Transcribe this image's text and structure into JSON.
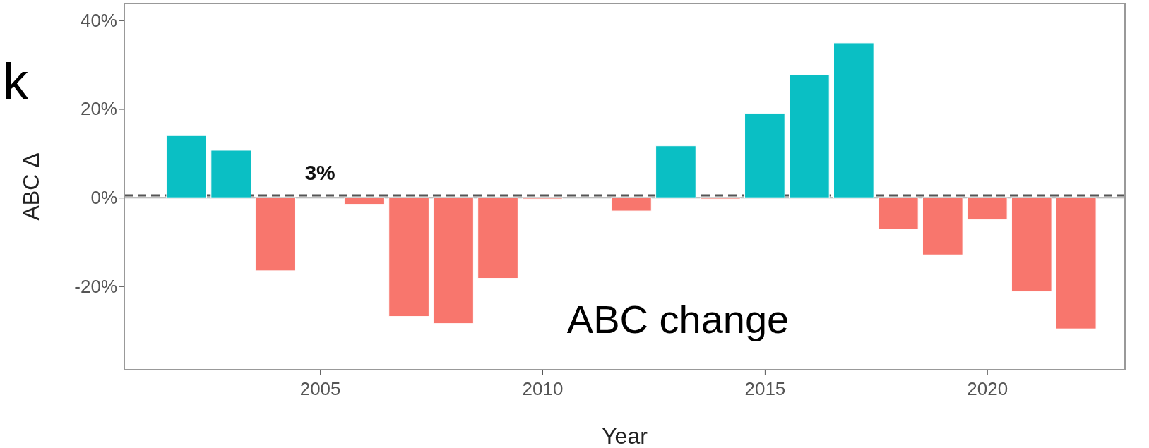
{
  "chart_data": {
    "type": "bar",
    "xlabel": "Year",
    "ylabel": "ABC Δ",
    "x": [
      2002,
      2003,
      2004,
      2006,
      2007,
      2008,
      2009,
      2010,
      2012,
      2013,
      2014,
      2015,
      2016,
      2017,
      2018,
      2019,
      2020,
      2021,
      2022
    ],
    "values": [
      14,
      10.7,
      -16.5,
      -1.5,
      -26.8,
      -28.4,
      -18.2,
      -0.3,
      -3,
      11.7,
      -0.3,
      19,
      27.8,
      34.9,
      -7.1,
      -12.9,
      -5,
      -21.2,
      -29.6
    ],
    "colors": [
      "#0abfc4",
      "#0abfc4",
      "#f8766d",
      "#f8766d",
      "#f8766d",
      "#f8766d",
      "#f8766d",
      "#f8766d",
      "#f8766d",
      "#0abfc4",
      "#f8766d",
      "#0abfc4",
      "#0abfc4",
      "#0abfc4",
      "#f8766d",
      "#f8766d",
      "#f8766d",
      "#f8766d",
      "#f8766d"
    ],
    "xlim": [
      2000.6,
      2023.1
    ],
    "xticks": [
      2005,
      2010,
      2015,
      2020
    ],
    "ylim": [
      -38.8,
      43.8
    ],
    "yticks": [
      {
        "value": -20,
        "label": "-20%"
      },
      {
        "value": 0,
        "label": "0%"
      },
      {
        "value": 20,
        "label": "20%"
      },
      {
        "value": 40,
        "label": "40%"
      }
    ],
    "ref_lines": [
      {
        "axis": "y",
        "value": 0,
        "color": "#aaaaaa",
        "line_style": "solid"
      },
      {
        "axis": "y",
        "value": 0.5,
        "color": "#555555",
        "line_style": "dashed"
      }
    ],
    "annotations": [
      "ABC change",
      "k",
      "3%"
    ],
    "grid": false
  }
}
